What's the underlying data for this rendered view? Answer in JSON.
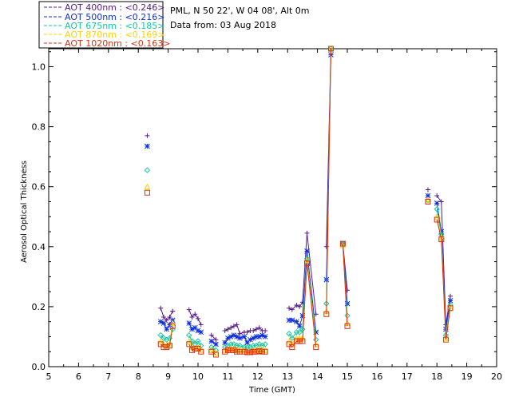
{
  "chart_data": {
    "type": "line",
    "info": {
      "location": "PML, N 50 22', W 04 08', Alt 0m",
      "date": "Data from: 03 Aug 2018"
    },
    "xlabel": "Time (GMT)",
    "ylabel": "Aerosol Optical Thickness",
    "xlim": [
      5,
      20
    ],
    "ylim": [
      0,
      1.06
    ],
    "xticks": [
      5,
      6,
      7,
      8,
      9,
      10,
      11,
      12,
      13,
      14,
      15,
      16,
      17,
      18,
      19,
      20
    ],
    "yticks": [
      0.0,
      0.2,
      0.4,
      0.6,
      0.8,
      1.0
    ],
    "ytick_labels": [
      "0.0",
      "0.2",
      "0.4",
      "0.6",
      "0.8",
      "1.0"
    ],
    "legend": [
      "AOT  400nm : <0.246>",
      "AOT  500nm : <0.216>",
      "AOT  675nm : <0.185>",
      "AOT  870nm : <0.169>",
      "AOT 1020nm : <0.163>"
    ],
    "series": [
      {
        "name": "AOT 400nm",
        "color": "#5a1a8c",
        "marker": "plus",
        "x": [
          8.3,
          8.75,
          8.85,
          8.95,
          9.05,
          9.15,
          9.7,
          9.8,
          9.9,
          10.0,
          10.1,
          10.45,
          10.6,
          10.9,
          11.0,
          11.1,
          11.2,
          11.3,
          11.4,
          11.55,
          11.65,
          11.75,
          11.85,
          11.95,
          12.05,
          12.15,
          12.25,
          13.05,
          13.15,
          13.3,
          13.4,
          13.5,
          13.65,
          13.95,
          14.3,
          14.45,
          14.85,
          15.0,
          17.7,
          18.0,
          18.15,
          18.3,
          18.45
        ],
        "values": [
          0.77,
          0.195,
          0.165,
          0.155,
          0.165,
          0.185,
          0.19,
          0.165,
          0.175,
          0.16,
          0.14,
          0.105,
          0.09,
          0.12,
          0.125,
          0.13,
          0.135,
          0.14,
          0.11,
          0.115,
          0.115,
          0.12,
          0.12,
          0.125,
          0.13,
          0.12,
          0.12,
          0.195,
          0.19,
          0.205,
          0.2,
          0.215,
          0.445,
          0.175,
          0.4,
          1.055,
          0.41,
          0.255,
          0.59,
          0.57,
          0.55,
          0.14,
          0.235
        ]
      },
      {
        "name": "AOT 500nm",
        "color": "#1030e0",
        "marker": "star",
        "x": [
          8.3,
          8.75,
          8.85,
          8.95,
          9.05,
          9.15,
          9.7,
          9.8,
          9.9,
          10.0,
          10.1,
          10.45,
          10.6,
          10.9,
          11.0,
          11.1,
          11.2,
          11.3,
          11.4,
          11.55,
          11.65,
          11.75,
          11.85,
          11.95,
          12.05,
          12.15,
          12.25,
          13.05,
          13.15,
          13.3,
          13.4,
          13.5,
          13.65,
          13.95,
          14.3,
          14.45,
          14.85,
          15.0,
          17.7,
          18.0,
          18.15,
          18.3,
          18.45
        ],
        "values": [
          0.735,
          0.15,
          0.145,
          0.125,
          0.14,
          0.155,
          0.145,
          0.125,
          0.13,
          0.12,
          0.115,
          0.085,
          0.075,
          0.08,
          0.095,
          0.1,
          0.105,
          0.1,
          0.095,
          0.1,
          0.08,
          0.09,
          0.095,
          0.1,
          0.1,
          0.105,
          0.1,
          0.155,
          0.155,
          0.15,
          0.135,
          0.17,
          0.385,
          0.115,
          0.29,
          1.04,
          0.41,
          0.21,
          0.57,
          0.545,
          0.45,
          0.125,
          0.22
        ]
      },
      {
        "name": "AOT 675nm",
        "color": "#10c8a0",
        "marker": "diamond",
        "x": [
          8.3,
          8.75,
          8.85,
          8.95,
          9.05,
          9.15,
          9.7,
          9.8,
          9.9,
          10.0,
          10.1,
          10.45,
          10.6,
          10.9,
          11.0,
          11.1,
          11.2,
          11.3,
          11.4,
          11.55,
          11.65,
          11.75,
          11.85,
          11.95,
          12.05,
          12.15,
          12.25,
          13.05,
          13.15,
          13.3,
          13.4,
          13.5,
          13.65,
          13.95,
          14.3,
          14.45,
          14.85,
          15.0,
          17.7,
          18.0,
          18.15,
          18.3,
          18.45
        ],
        "values": [
          0.655,
          0.105,
          0.095,
          0.09,
          0.095,
          0.125,
          0.105,
          0.085,
          0.075,
          0.085,
          0.07,
          0.065,
          0.055,
          0.065,
          0.07,
          0.075,
          0.075,
          0.07,
          0.07,
          0.065,
          0.065,
          0.065,
          0.07,
          0.07,
          0.075,
          0.07,
          0.075,
          0.11,
          0.095,
          0.115,
          0.115,
          0.125,
          0.36,
          0.09,
          0.21,
          1.06,
          0.41,
          0.17,
          0.555,
          0.525,
          0.44,
          0.105,
          0.205
        ]
      },
      {
        "name": "AOT 870nm",
        "color": "#ffd200",
        "marker": "triangle",
        "x": [
          8.3,
          8.75,
          8.85,
          8.95,
          9.05,
          9.15,
          9.7,
          9.8,
          9.9,
          10.0,
          10.1,
          10.45,
          10.6,
          10.9,
          11.0,
          11.1,
          11.2,
          11.3,
          11.4,
          11.55,
          11.65,
          11.75,
          11.85,
          11.95,
          12.05,
          12.15,
          12.25,
          13.05,
          13.15,
          13.3,
          13.4,
          13.5,
          13.65,
          13.95,
          14.3,
          14.45,
          14.85,
          15.0,
          17.7,
          18.0,
          18.15,
          18.3,
          18.45
        ],
        "values": [
          0.6,
          0.085,
          0.075,
          0.07,
          0.075,
          0.145,
          0.085,
          0.065,
          0.06,
          0.065,
          0.055,
          0.055,
          0.045,
          0.055,
          0.06,
          0.06,
          0.06,
          0.055,
          0.055,
          0.055,
          0.05,
          0.05,
          0.055,
          0.055,
          0.06,
          0.055,
          0.055,
          0.085,
          0.075,
          0.095,
          0.095,
          0.095,
          0.355,
          0.075,
          0.185,
          1.06,
          0.405,
          0.145,
          0.555,
          0.5,
          0.43,
          0.095,
          0.2
        ]
      },
      {
        "name": "AOT 1020nm",
        "color": "#e03010",
        "marker": "square",
        "x": [
          8.3,
          8.75,
          8.85,
          8.95,
          9.05,
          9.15,
          9.7,
          9.8,
          9.9,
          10.0,
          10.1,
          10.45,
          10.6,
          10.9,
          11.0,
          11.1,
          11.2,
          11.3,
          11.4,
          11.55,
          11.65,
          11.75,
          11.85,
          11.95,
          12.05,
          12.15,
          12.25,
          13.05,
          13.15,
          13.3,
          13.4,
          13.5,
          13.65,
          13.95,
          14.3,
          14.45,
          14.85,
          15.0,
          17.7,
          18.0,
          18.15,
          18.3,
          18.45
        ],
        "values": [
          0.58,
          0.075,
          0.065,
          0.065,
          0.07,
          0.135,
          0.075,
          0.055,
          0.06,
          0.06,
          0.05,
          0.05,
          0.04,
          0.05,
          0.055,
          0.055,
          0.055,
          0.05,
          0.05,
          0.05,
          0.048,
          0.048,
          0.05,
          0.05,
          0.052,
          0.05,
          0.05,
          0.075,
          0.065,
          0.085,
          0.085,
          0.085,
          0.345,
          0.065,
          0.175,
          1.06,
          0.41,
          0.135,
          0.55,
          0.49,
          0.425,
          0.09,
          0.195
        ]
      }
    ]
  }
}
